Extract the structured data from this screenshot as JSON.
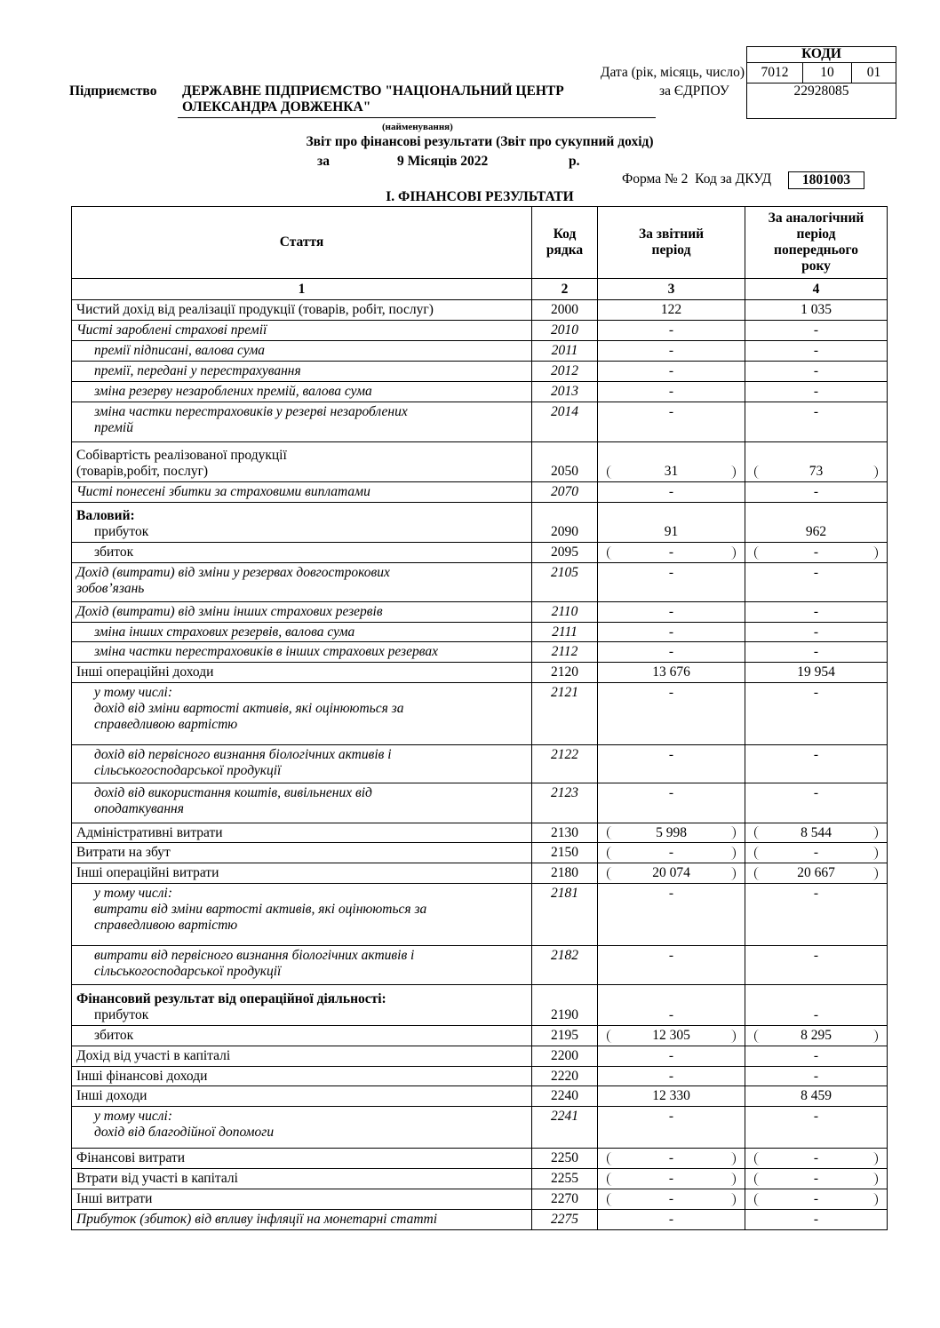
{
  "codes": {
    "title": "КОДИ",
    "date_label": "Дата (рік, місяць, число)",
    "date": [
      "7012",
      "10",
      "01"
    ],
    "edrpou_label": "за ЄДРПОУ",
    "edrpou": "22928085"
  },
  "enterprise": {
    "label": "Підприємство",
    "name": [
      "ДЕРЖАВНЕ ПІДПРИЄМСТВО \"НАЦІОНАЛЬНИЙ ЦЕНТР",
      "ОЛЕКСАНДРА ДОВЖЕНКА\""
    ],
    "caption": "(найменування)"
  },
  "report": {
    "title": "Звіт про фінансові результати (Звіт про сукупний дохід)",
    "period_prefix": "за",
    "period": "9 Місяців 2022",
    "period_suffix": "р.",
    "form": "Форма № 2  Код за ДКУД",
    "dkud": "1801003",
    "section": "I. ФІНАНСОВІ РЕЗУЛЬТАТИ"
  },
  "table": {
    "header": [
      [
        "Стаття"
      ],
      [
        "Код",
        "рядка"
      ],
      [
        "За звітний",
        "період"
      ],
      [
        "За аналогічний",
        "період",
        "попереднього",
        "року"
      ]
    ],
    "column_numbers": [
      "1",
      "2",
      "3",
      "4"
    ],
    "rows": [
      {
        "label": [
          "Чистий  дохід від реалізації продукції (товарів, робіт, послуг)"
        ],
        "code": "2000",
        "current": "122",
        "previous": "1 035"
      },
      {
        "label": [
          "Чисті зароблені страхові премії"
        ],
        "code": "2010",
        "current": "-",
        "previous": "-"
      },
      {
        "label": [
          "премії підписані, валова сума"
        ],
        "code": "2011",
        "current": "-",
        "previous": "-"
      },
      {
        "label": [
          "премії, передані у перестрахування"
        ],
        "code": "2012",
        "current": "-",
        "previous": "-"
      },
      {
        "label": [
          "зміна резерву незароблених премій, валова сума"
        ],
        "code": "2013",
        "current": "-",
        "previous": "-"
      },
      {
        "label": [
          "зміна частки перестраховиків у резерві незароблених",
          "премій"
        ],
        "code": "2014",
        "current": "-",
        "previous": "-"
      },
      {
        "label": [
          "Собівартість реалізованої продукції",
          "(товарів,робіт, послуг)"
        ],
        "code": "2050",
        "current": "31",
        "previous": "73"
      },
      {
        "label": [
          "Чисті понесені збитки за страховими виплатами"
        ],
        "code": "2070",
        "current": "-",
        "previous": "-"
      },
      {
        "label": [
          "Валовий:",
          "прибуток"
        ],
        "code": "2090",
        "current": "91",
        "previous": "962"
      },
      {
        "label": [
          "збиток"
        ],
        "code": "2095",
        "current": "-",
        "previous": "-"
      },
      {
        "label": [
          "Дохід (витрати) від зміни у резервах довгострокових",
          "зобов’язань"
        ],
        "code": "2105",
        "current": "-",
        "previous": "-"
      },
      {
        "label": [
          "Дохід (витрати) від зміни інших страхових резервів"
        ],
        "code": "2110",
        "current": "-",
        "previous": "-"
      },
      {
        "label": [
          "зміна інших страхових резервів, валова сума"
        ],
        "code": "2111",
        "current": "-",
        "previous": "-"
      },
      {
        "label": [
          "зміна частки перестраховиків в інших страхових резервах"
        ],
        "code": "2112",
        "current": "-",
        "previous": "-"
      },
      {
        "label": [
          "Інші операційні доходи"
        ],
        "code": "2120",
        "current": "13 676",
        "previous": "19 954"
      },
      {
        "label": [
          "у тому числі:",
          "дохід від зміни вартості активів, які оцінюються за",
          "справедливою вартістю"
        ],
        "code": "2121",
        "current": "-",
        "previous": "-"
      },
      {
        "label": [
          "дохід від первісного визнання біологічних активів і",
          "сільськогосподарської продукції"
        ],
        "code": "2122",
        "current": "-",
        "previous": "-"
      },
      {
        "label": [
          "дохід від використання коштів, вивільнених від",
          "оподаткування"
        ],
        "code": "2123",
        "current": "-",
        "previous": "-"
      },
      {
        "label": [
          "Адміністративні витрати"
        ],
        "code": "2130",
        "current": "5 998",
        "previous": "8 544"
      },
      {
        "label": [
          "Витрати на збут"
        ],
        "code": "2150",
        "current": "-",
        "previous": "-"
      },
      {
        "label": [
          "Інші операційні витрати"
        ],
        "code": "2180",
        "current": "20 074",
        "previous": "20 667"
      },
      {
        "label": [
          "у тому числі:",
          "витрати від зміни вартості активів, які оцінюються за",
          "справедливою вартістю"
        ],
        "code": "2181",
        "current": "-",
        "previous": "-"
      },
      {
        "label": [
          "витрати від первісного визнання біологічних активів і",
          "сільськогосподарської продукції"
        ],
        "code": "2182",
        "current": "-",
        "previous": "-"
      },
      {
        "label": [
          "Фінансовий результат від операційної діяльності:",
          "прибуток"
        ],
        "code": "2190",
        "current": "-",
        "previous": "-"
      },
      {
        "label": [
          "збиток"
        ],
        "code": "2195",
        "current": "12 305",
        "previous": "8 295"
      },
      {
        "label": [
          "Дохід від участі в капіталі"
        ],
        "code": "2200",
        "current": "-",
        "previous": "-"
      },
      {
        "label": [
          "Інші фінансові доходи"
        ],
        "code": "2220",
        "current": "-",
        "previous": "-"
      },
      {
        "label": [
          "Інші доходи"
        ],
        "code": "2240",
        "current": "12 330",
        "previous": "8 459"
      },
      {
        "label": [
          "у тому числі:",
          "дохід від  благодійної допомоги"
        ],
        "code": "2241",
        "current": "-",
        "previous": "-"
      },
      {
        "label": [
          "Фінансові витрати"
        ],
        "code": "2250",
        "current": "-",
        "previous": "-"
      },
      {
        "label": [
          "Втрати від участі в капіталі"
        ],
        "code": "2255",
        "current": "-",
        "previous": "-"
      },
      {
        "label": [
          "Інші витрати"
        ],
        "code": "2270",
        "current": "-",
        "previous": "-"
      },
      {
        "label": [
          "Прибуток (збиток) від впливу інфляції на монетарні статті"
        ],
        "code": "2275",
        "current": "-",
        "previous": "-"
      }
    ]
  }
}
